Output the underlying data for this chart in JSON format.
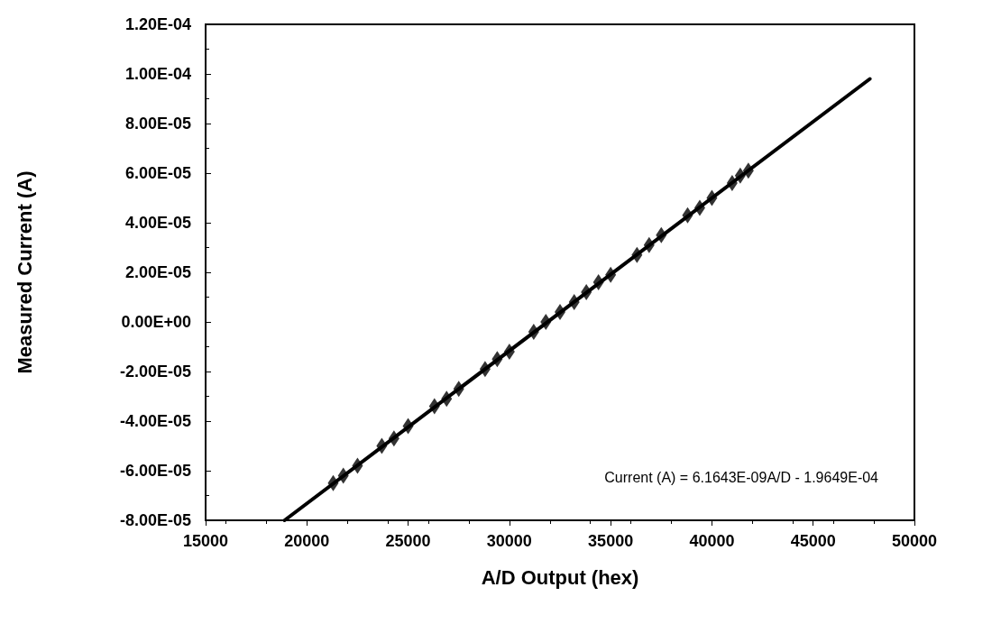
{
  "chart_data": {
    "type": "scatter",
    "xlabel": "A/D Output (hex)",
    "ylabel": "Measured Current (A)",
    "annotations": [
      "Current (A) = 6.1643E-09A/D - 1.9649E-04"
    ],
    "xlim": [
      15000,
      50000
    ],
    "xticks": [
      15000,
      20000,
      25000,
      30000,
      35000,
      40000,
      45000,
      50000
    ],
    "ylim": [
      -8e-05,
      0.00012
    ],
    "yticks": [
      {
        "value": -8e-05,
        "label": "-8.00E-05"
      },
      {
        "value": -6e-05,
        "label": "-6.00E-05"
      },
      {
        "value": -4e-05,
        "label": "-4.00E-05"
      },
      {
        "value": -2e-05,
        "label": "-2.00E-05"
      },
      {
        "value": 0,
        "label": "0.00E+00"
      },
      {
        "value": 2e-05,
        "label": "2.00E-05"
      },
      {
        "value": 4e-05,
        "label": "4.00E-05"
      },
      {
        "value": 6e-05,
        "label": "6.00E-05"
      },
      {
        "value": 8e-05,
        "label": "8.00E-05"
      },
      {
        "value": 0.0001,
        "label": "1.00E-04"
      },
      {
        "value": 0.00012,
        "label": "1.20E-04"
      }
    ],
    "grid": false,
    "marker": "diamond",
    "series": [
      {
        "color": "#000000",
        "x": [
          21300,
          21800,
          22500,
          23700,
          24300,
          25000,
          26300,
          26900,
          27500,
          28800,
          29400,
          30000,
          31200,
          31800,
          32500,
          33200,
          33800,
          34400,
          35000,
          36300,
          36900,
          37500,
          38800,
          39400,
          40000,
          41000,
          41400,
          41800
        ],
        "values": [
          -6.5e-05,
          -6.2e-05,
          -5.8e-05,
          -5e-05,
          -4.7e-05,
          -4.2e-05,
          -3.4e-05,
          -3.1e-05,
          -2.7e-05,
          -1.9e-05,
          -1.5e-05,
          -1.2e-05,
          -4e-06,
          0,
          4e-06,
          8e-06,
          1.2e-05,
          1.6e-05,
          1.9e-05,
          2.7e-05,
          3.1e-05,
          3.5e-05,
          4.3e-05,
          4.6e-05,
          5e-05,
          5.6e-05,
          5.9e-05,
          6.1e-05
        ]
      },
      {
        "type": "line",
        "color": "#000000",
        "marker": "none",
        "line_style": "solid",
        "x": [
          18900,
          47800
        ],
        "values": [
          -8e-05,
          9.8e-05
        ]
      }
    ]
  }
}
